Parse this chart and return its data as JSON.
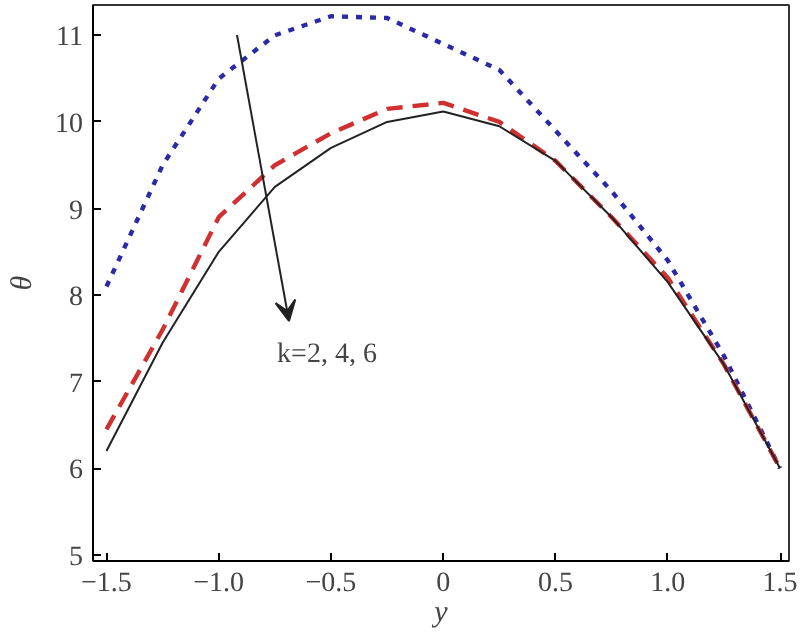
{
  "chart_data": {
    "type": "line",
    "xlabel": "y",
    "ylabel": "θ",
    "x": [
      -1.5,
      -1.25,
      -1.0,
      -0.75,
      -0.5,
      -0.25,
      0,
      0.25,
      0.5,
      0.75,
      1.0,
      1.25,
      1.5
    ],
    "series": [
      {
        "color": "#2a2aa8",
        "line_style": "dotted",
        "values": [
          8.1,
          9.5,
          10.5,
          11.0,
          11.22,
          11.2,
          10.9,
          10.6,
          9.9,
          9.2,
          8.4,
          7.3,
          6.0
        ]
      },
      {
        "color": "#d03030",
        "line_style": "dashed",
        "values": [
          6.45,
          7.6,
          8.9,
          9.5,
          9.87,
          10.15,
          10.22,
          10.0,
          9.55,
          8.9,
          8.2,
          7.2,
          6.0
        ]
      },
      {
        "color": "#222222",
        "line_style": "solid",
        "values": [
          6.2,
          7.45,
          8.5,
          9.25,
          9.7,
          10.0,
          10.12,
          9.95,
          9.55,
          8.9,
          8.15,
          7.2,
          6.0
        ]
      }
    ],
    "xlim": [
      -1.56,
      1.54
    ],
    "ylim": [
      4.93,
      11.35
    ],
    "xticks": [
      {
        "value": -1.5,
        "label": "−1.5"
      },
      {
        "value": -1.0,
        "label": "−1.0"
      },
      {
        "value": -0.5,
        "label": "−0.5"
      },
      0,
      0.5,
      {
        "value": 1.0,
        "label": "1.0"
      },
      1.5
    ],
    "yticks": [
      5,
      6,
      7,
      8,
      9,
      10,
      11
    ],
    "annotations": [
      "k=2, 4, 6"
    ],
    "grid": false,
    "marker": "none"
  }
}
